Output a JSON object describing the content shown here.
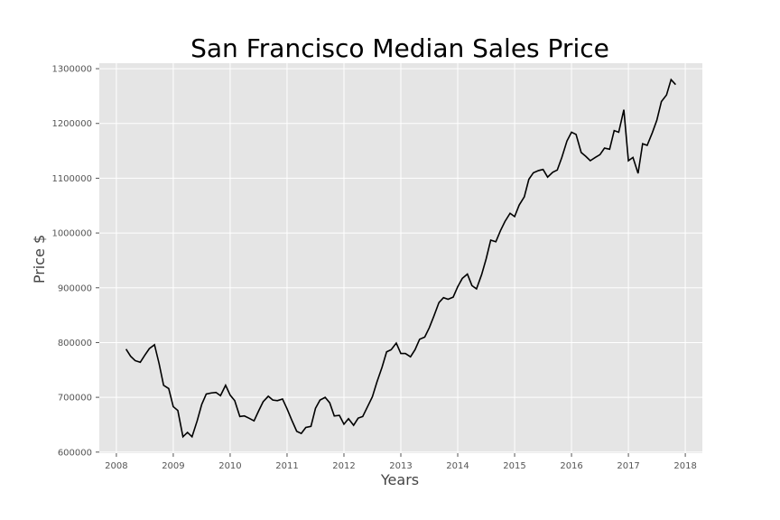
{
  "chart_data": {
    "type": "line",
    "title": "San Francisco Median Sales Price",
    "xlabel": "Years",
    "ylabel": "Price $",
    "xlim": [
      2007.7,
      2018.3
    ],
    "ylim": [
      598000,
      1310000
    ],
    "xticks": [
      2008,
      2009,
      2010,
      2011,
      2012,
      2013,
      2014,
      2015,
      2016,
      2017,
      2018
    ],
    "yticks": [
      600000,
      700000,
      800000,
      900000,
      1000000,
      1100000,
      1200000,
      1300000
    ],
    "grid": true,
    "background": "#e5e5e5",
    "line_color": "#000000",
    "series": [
      {
        "x": [
          2008.17,
          2008.25,
          2008.33,
          2008.42,
          2008.5,
          2008.58,
          2008.67,
          2008.75,
          2008.83,
          2008.92,
          2009.0,
          2009.08,
          2009.17,
          2009.25,
          2009.33,
          2009.42,
          2009.5,
          2009.58,
          2009.67,
          2009.75,
          2009.83,
          2009.92,
          2010.0,
          2010.08,
          2010.17,
          2010.25,
          2010.33,
          2010.42,
          2010.5,
          2010.58,
          2010.67,
          2010.75,
          2010.83,
          2010.92,
          2011.0,
          2011.08,
          2011.17,
          2011.25,
          2011.33,
          2011.42,
          2011.5,
          2011.58,
          2011.67,
          2011.75,
          2011.83,
          2011.92,
          2012.0,
          2012.08,
          2012.17,
          2012.25,
          2012.33,
          2012.42,
          2012.5,
          2012.58,
          2012.67,
          2012.75,
          2012.83,
          2012.92,
          2013.0,
          2013.08,
          2013.17,
          2013.25,
          2013.33,
          2013.42,
          2013.5,
          2013.58,
          2013.67,
          2013.75,
          2013.83,
          2013.92,
          2014.0,
          2014.08,
          2014.17,
          2014.25,
          2014.33,
          2014.42,
          2014.5,
          2014.58,
          2014.67,
          2014.75,
          2014.83,
          2014.92,
          2015.0,
          2015.08,
          2015.17,
          2015.25,
          2015.33,
          2015.42,
          2015.5,
          2015.58,
          2015.67,
          2015.75,
          2015.83,
          2015.92,
          2016.0,
          2016.08,
          2016.17,
          2016.25,
          2016.33,
          2016.42,
          2016.5,
          2016.58,
          2016.67,
          2016.75,
          2016.83,
          2016.92,
          2017.0,
          2017.08,
          2017.17,
          2017.25,
          2017.33,
          2017.42,
          2017.5,
          2017.58,
          2017.67,
          2017.75,
          2017.83
        ],
        "y": [
          788000,
          775000,
          767000,
          764000,
          777000,
          789000,
          796000,
          762000,
          722000,
          716000,
          683000,
          676000,
          628000,
          636000,
          628000,
          657000,
          687000,
          706000,
          708000,
          709000,
          703000,
          722000,
          704000,
          694000,
          665000,
          666000,
          662000,
          657000,
          675000,
          692000,
          702000,
          695000,
          694000,
          697000,
          679000,
          659000,
          638000,
          634000,
          645000,
          647000,
          680000,
          695000,
          700000,
          690000,
          666000,
          667000,
          651000,
          661000,
          649000,
          662000,
          665000,
          684000,
          701000,
          728000,
          755000,
          783000,
          787000,
          799000,
          780000,
          780000,
          774000,
          787000,
          806000,
          810000,
          827000,
          848000,
          873000,
          882000,
          879000,
          883000,
          902000,
          917000,
          925000,
          904000,
          898000,
          924000,
          953000,
          987000,
          984000,
          1004000,
          1021000,
          1036000,
          1030000,
          1051000,
          1066000,
          1098000,
          1110000,
          1114000,
          1116000,
          1102000,
          1111000,
          1115000,
          1138000,
          1168000,
          1184000,
          1180000,
          1147000,
          1140000,
          1132000,
          1138000,
          1143000,
          1155000,
          1153000,
          1187000,
          1184000,
          1225000,
          1132000,
          1138000,
          1109000,
          1163000,
          1160000,
          1183000,
          1206000,
          1240000,
          1252000,
          1280000,
          1271000
        ]
      }
    ]
  }
}
